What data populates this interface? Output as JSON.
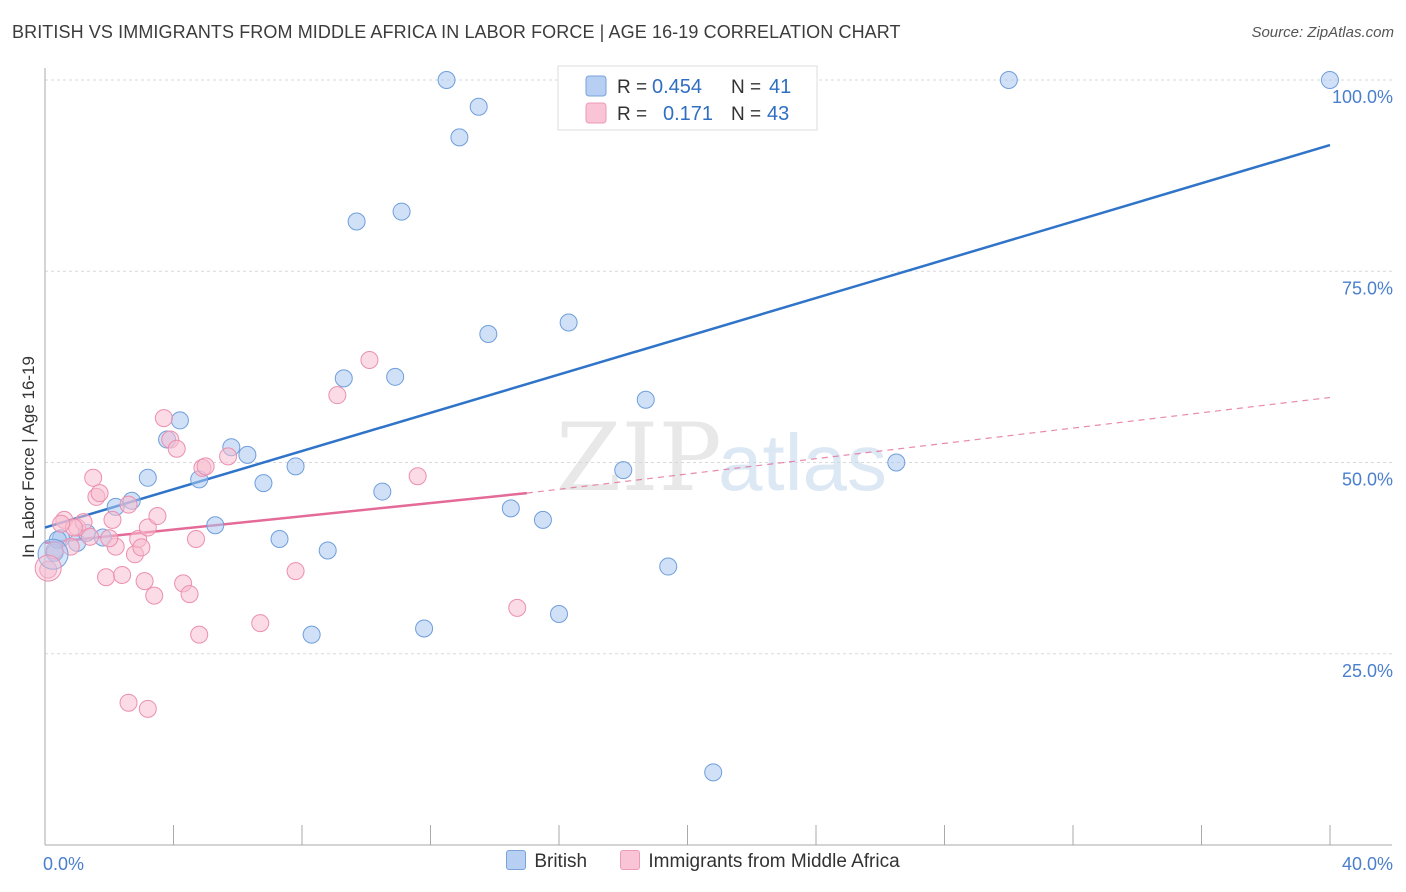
{
  "title": "BRITISH VS IMMIGRANTS FROM MIDDLE AFRICA IN LABOR FORCE | AGE 16-19 CORRELATION CHART",
  "source": "Source: ZipAtlas.com",
  "watermark": {
    "zip": "ZIP",
    "atlas": "atlas"
  },
  "chart_data": {
    "type": "scatter",
    "title": "BRITISH VS IMMIGRANTS FROM MIDDLE AFRICA IN LABOR FORCE | AGE 16-19 CORRELATION CHART",
    "xlabel": "",
    "ylabel": "In Labor Force | Age 16-19",
    "xlim": [
      0,
      40
    ],
    "ylim": [
      0,
      100
    ],
    "x_tick_labels": {
      "left": "0.0%",
      "right": "40.0%"
    },
    "y_ticks": [
      {
        "value": 25,
        "label": "25.0%"
      },
      {
        "value": 50,
        "label": "50.0%"
      },
      {
        "value": 75,
        "label": "75.0%"
      },
      {
        "value": 100,
        "label": "100.0%"
      }
    ],
    "grid": true,
    "legend": {
      "placement": "top-center",
      "rows": [
        {
          "r_label": "R =",
          "r": "0.454",
          "n_label": "N =",
          "n": "41"
        },
        {
          "r_label": "R =",
          "r": "0.171",
          "n_label": "N =",
          "n": "43"
        }
      ]
    },
    "series": [
      {
        "name": "British",
        "color": "#a9c6f0",
        "edge": "#6f9fdc",
        "trend_color": "#2f74c8",
        "trend": {
          "x0": 0,
          "y0": 41.5,
          "x1": 40,
          "y1": 91.5
        },
        "points": [
          [
            0.3,
            38.2
          ],
          [
            0.5,
            40.1
          ],
          [
            1.0,
            39.5
          ],
          [
            1.3,
            40.8
          ],
          [
            1.8,
            40.2
          ],
          [
            2.2,
            44.2
          ],
          [
            2.7,
            45.0
          ],
          [
            3.2,
            48.0
          ],
          [
            3.8,
            53.0
          ],
          [
            4.2,
            55.5
          ],
          [
            4.8,
            47.8
          ],
          [
            5.3,
            41.8
          ],
          [
            5.8,
            52.0
          ],
          [
            6.3,
            51.0
          ],
          [
            6.8,
            47.3
          ],
          [
            7.3,
            40.0
          ],
          [
            7.8,
            49.5
          ],
          [
            8.3,
            27.5
          ],
          [
            8.8,
            38.5
          ],
          [
            9.3,
            61.0
          ],
          [
            9.7,
            81.5
          ],
          [
            10.5,
            46.2
          ],
          [
            10.9,
            61.2
          ],
          [
            11.1,
            82.8
          ],
          [
            11.8,
            28.3
          ],
          [
            12.5,
            100.0
          ],
          [
            12.9,
            92.5
          ],
          [
            13.5,
            96.5
          ],
          [
            13.8,
            66.8
          ],
          [
            14.5,
            44.0
          ],
          [
            15.5,
            42.5
          ],
          [
            16.0,
            30.2
          ],
          [
            16.3,
            68.3
          ],
          [
            18.0,
            49.0
          ],
          [
            18.7,
            58.2
          ],
          [
            19.4,
            36.4
          ],
          [
            20.8,
            9.5
          ],
          [
            26.5,
            50.0
          ],
          [
            30.0,
            100.0
          ],
          [
            40.0,
            100.0
          ],
          [
            0.4,
            39.9
          ]
        ]
      },
      {
        "name": "Immigrants from Middle Africa",
        "color": "#f7bdd0",
        "edge": "#ec8fb0",
        "trend_color": "#e46a98",
        "trend": {
          "x0": 0,
          "y0": 39.5,
          "x1": 15,
          "y1": 46.0
        },
        "trend_extension": {
          "x0": 15,
          "y0": 46.0,
          "x1": 40,
          "y1": 58.5
        },
        "points": [
          [
            0.1,
            36.0
          ],
          [
            0.3,
            38.5
          ],
          [
            0.6,
            42.5
          ],
          [
            0.8,
            39.0
          ],
          [
            1.0,
            41.5
          ],
          [
            1.2,
            42.2
          ],
          [
            1.5,
            48.0
          ],
          [
            1.6,
            45.5
          ],
          [
            1.7,
            46.0
          ],
          [
            1.9,
            35.0
          ],
          [
            2.1,
            42.5
          ],
          [
            2.2,
            39.0
          ],
          [
            2.4,
            35.3
          ],
          [
            2.6,
            44.5
          ],
          [
            2.8,
            38.0
          ],
          [
            2.9,
            40.0
          ],
          [
            3.0,
            38.9
          ],
          [
            3.1,
            34.5
          ],
          [
            3.2,
            41.5
          ],
          [
            3.4,
            32.6
          ],
          [
            3.5,
            43.0
          ],
          [
            3.7,
            55.8
          ],
          [
            3.9,
            53.0
          ],
          [
            4.1,
            51.8
          ],
          [
            4.3,
            34.2
          ],
          [
            4.5,
            32.8
          ],
          [
            4.7,
            40.0
          ],
          [
            4.8,
            27.5
          ],
          [
            4.9,
            49.3
          ],
          [
            5.0,
            49.5
          ],
          [
            5.7,
            50.8
          ],
          [
            6.7,
            29.0
          ],
          [
            7.8,
            35.8
          ],
          [
            9.1,
            58.8
          ],
          [
            10.1,
            63.4
          ],
          [
            11.6,
            48.2
          ],
          [
            14.7,
            31.0
          ],
          [
            2.6,
            18.6
          ],
          [
            3.2,
            17.8
          ],
          [
            0.9,
            41.5
          ],
          [
            0.5,
            42.0
          ],
          [
            2.0,
            40.1
          ],
          [
            1.4,
            40.3
          ]
        ]
      }
    ]
  }
}
